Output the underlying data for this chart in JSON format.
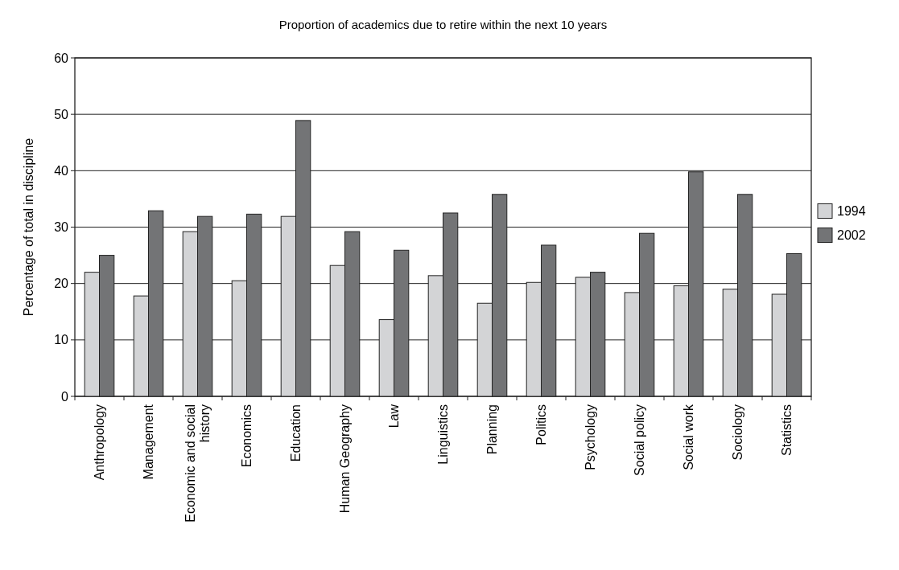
{
  "chart_data": {
    "type": "bar",
    "title": "Proportion of academics due to retire within the next 10 years",
    "ylabel": "Percentage of total in discipline",
    "categories": [
      "Anthropology",
      "Management",
      "Economic and social history",
      "Economics",
      "Education",
      "Human Geography",
      "Law",
      "Linguistics",
      "Planning",
      "Politics",
      "Psychology",
      "Social policy",
      "Social work",
      "Sociology",
      "Statistics"
    ],
    "series": [
      {
        "name": "1994",
        "color": "#d3d4d6",
        "values": [
          22.0,
          17.8,
          29.2,
          20.5,
          31.9,
          23.2,
          13.6,
          21.4,
          16.5,
          20.2,
          21.1,
          18.4,
          19.6,
          19.0,
          18.1
        ]
      },
      {
        "name": "2002",
        "color": "#737476",
        "values": [
          25.0,
          32.9,
          31.9,
          32.3,
          48.9,
          29.2,
          25.9,
          32.5,
          35.8,
          26.8,
          22.0,
          28.9,
          39.8,
          35.8,
          25.3
        ]
      }
    ],
    "ylim": [
      0,
      60
    ],
    "yticks": [
      0,
      10,
      20,
      30,
      40,
      50,
      60
    ],
    "grid": "y",
    "legend": "right"
  }
}
